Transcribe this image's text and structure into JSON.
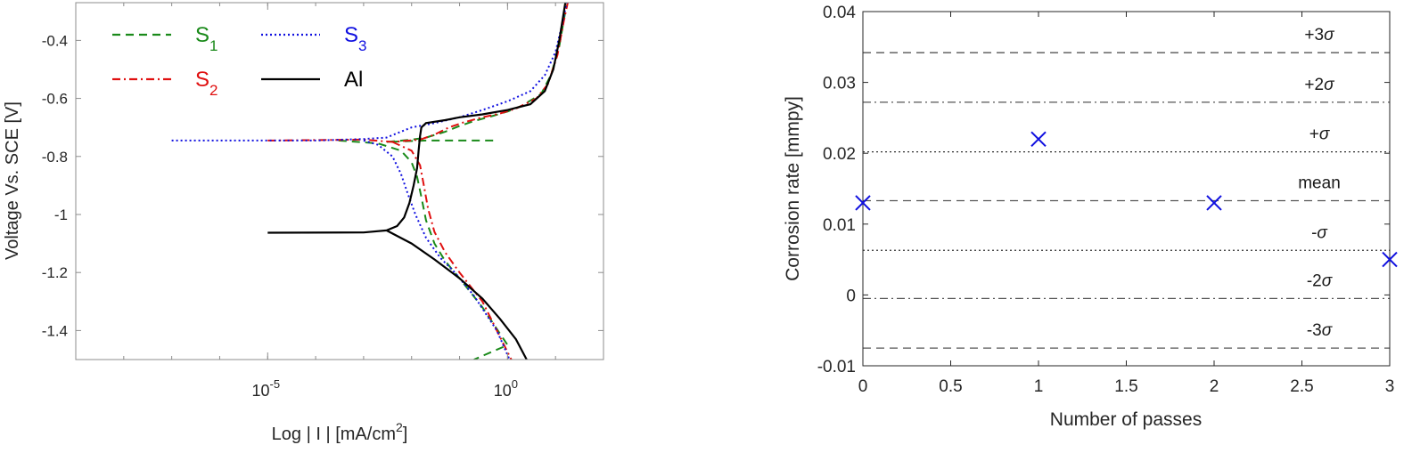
{
  "chart_data": [
    {
      "type": "line",
      "xlabel": "Log | I | [mA/cm",
      "xlabel_sup": "2",
      "xlabel_end": "]",
      "ylabel": "Voltage Vs. SCE [V]",
      "x_scale": "log",
      "xlim": [
        1e-09,
        100
      ],
      "ylim": [
        -1.5,
        -0.27
      ],
      "x_ticks": [
        {
          "value": 1e-05,
          "base": "10",
          "exp": "-5"
        },
        {
          "value": 1,
          "base": "10",
          "exp": "0"
        }
      ],
      "y_ticks": [
        -0.4,
        -0.6,
        -0.8,
        -1,
        -1.2,
        -1.4
      ],
      "y_tick_labels": [
        "-0.4",
        "-0.6",
        "-0.8",
        "-1",
        "-1.2",
        "-1.4"
      ],
      "legend_position": "top-left",
      "series": [
        {
          "name": "S",
          "subscript": "1",
          "color": "#1a8a1a",
          "dash": "dashed",
          "points": [
            [
              0.5,
              -0.745
            ],
            [
              0.02,
              -0.745
            ],
            [
              0.003,
              -0.75
            ],
            [
              0.01,
              -0.742
            ],
            [
              0.02,
              -0.735
            ],
            [
              0.05,
              -0.715
            ],
            [
              0.1,
              -0.695
            ],
            [
              0.2,
              -0.678
            ],
            [
              0.5,
              -0.66
            ],
            [
              1.0,
              -0.645
            ],
            [
              2.0,
              -0.625
            ],
            [
              5.0,
              -0.585
            ],
            [
              8.0,
              -0.52
            ],
            [
              12.0,
              -0.42
            ],
            [
              16.0,
              -0.3
            ],
            [
              18.0,
              -0.27
            ]
          ]
        },
        {
          "name": "S",
          "subscript": "1",
          "color": "#1a8a1a",
          "dash": "dashed",
          "points": [
            [
              0.0003,
              -0.745
            ],
            [
              0.002,
              -0.755
            ],
            [
              0.006,
              -0.78
            ],
            [
              0.01,
              -0.82
            ],
            [
              0.013,
              -0.87
            ],
            [
              0.016,
              -0.94
            ],
            [
              0.02,
              -1.02
            ],
            [
              0.03,
              -1.1
            ],
            [
              0.05,
              -1.16
            ],
            [
              0.1,
              -1.22
            ],
            [
              0.3,
              -1.32
            ],
            [
              1.0,
              -1.45
            ],
            [
              0.2,
              -1.5
            ]
          ]
        },
        {
          "name": "S",
          "subscript": "2",
          "color": "#e01010",
          "dash": "dashdot",
          "points": [
            [
              1e-05,
              -0.745
            ],
            [
              0.001,
              -0.742
            ],
            [
              0.004,
              -0.75
            ],
            [
              0.015,
              -0.742
            ],
            [
              0.03,
              -0.725
            ],
            [
              0.06,
              -0.7
            ],
            [
              0.12,
              -0.683
            ],
            [
              0.3,
              -0.665
            ],
            [
              0.7,
              -0.652
            ],
            [
              1.5,
              -0.635
            ],
            [
              4.0,
              -0.6
            ],
            [
              7.0,
              -0.55
            ],
            [
              11.0,
              -0.45
            ],
            [
              15.0,
              -0.33
            ],
            [
              18.0,
              -0.27
            ]
          ]
        },
        {
          "name": "S",
          "subscript": "2",
          "color": "#e01010",
          "dash": "dashdot",
          "points": [
            [
              0.004,
              -0.75
            ],
            [
              0.01,
              -0.78
            ],
            [
              0.015,
              -0.83
            ],
            [
              0.018,
              -0.9
            ],
            [
              0.022,
              -0.98
            ],
            [
              0.03,
              -1.06
            ],
            [
              0.05,
              -1.13
            ],
            [
              0.1,
              -1.2
            ],
            [
              0.3,
              -1.3
            ],
            [
              1.2,
              -1.5
            ]
          ]
        },
        {
          "name": "S",
          "subscript": "3",
          "color": "#1010e0",
          "dash": "dotted",
          "points": [
            [
              1e-07,
              -0.745
            ],
            [
              0.0001,
              -0.745
            ],
            [
              0.001,
              -0.74
            ],
            [
              0.003,
              -0.735
            ],
            [
              0.005,
              -0.72
            ],
            [
              0.01,
              -0.7
            ],
            [
              0.03,
              -0.685
            ],
            [
              0.1,
              -0.665
            ],
            [
              0.3,
              -0.64
            ],
            [
              1.0,
              -0.61
            ],
            [
              3.0,
              -0.575
            ],
            [
              6.0,
              -0.52
            ],
            [
              10.0,
              -0.44
            ],
            [
              14.0,
              -0.34
            ],
            [
              17.0,
              -0.27
            ]
          ]
        },
        {
          "name": "S",
          "subscript": "3",
          "color": "#1010e0",
          "dash": "dotted",
          "points": [
            [
              0.001,
              -0.745
            ],
            [
              0.002,
              -0.76
            ],
            [
              0.004,
              -0.8
            ],
            [
              0.006,
              -0.86
            ],
            [
              0.008,
              -0.92
            ],
            [
              0.012,
              -1.0
            ],
            [
              0.02,
              -1.08
            ],
            [
              0.04,
              -1.15
            ],
            [
              0.08,
              -1.2
            ],
            [
              0.2,
              -1.28
            ],
            [
              0.6,
              -1.4
            ],
            [
              1.1,
              -1.5
            ]
          ]
        },
        {
          "name": "Al",
          "color": "#000000",
          "dash": "solid",
          "points": [
            [
              1e-05,
              -1.063
            ],
            [
              0.001,
              -1.062
            ],
            [
              0.003,
              -1.055
            ],
            [
              0.005,
              -1.04
            ],
            [
              0.007,
              -1.01
            ],
            [
              0.009,
              -0.96
            ],
            [
              0.011,
              -0.9
            ],
            [
              0.013,
              -0.84
            ],
            [
              0.014,
              -0.78
            ],
            [
              0.015,
              -0.73
            ],
            [
              0.016,
              -0.7
            ],
            [
              0.02,
              -0.685
            ],
            [
              0.05,
              -0.675
            ],
            [
              0.1,
              -0.665
            ],
            [
              0.3,
              -0.655
            ],
            [
              1.0,
              -0.64
            ],
            [
              3.0,
              -0.62
            ],
            [
              6.0,
              -0.575
            ],
            [
              9.0,
              -0.5
            ],
            [
              12.0,
              -0.4
            ],
            [
              16.0,
              -0.27
            ]
          ]
        },
        {
          "name": "Al",
          "color": "#000000",
          "dash": "solid",
          "points": [
            [
              0.003,
              -1.055
            ],
            [
              0.01,
              -1.1
            ],
            [
              0.03,
              -1.155
            ],
            [
              0.1,
              -1.22
            ],
            [
              0.3,
              -1.29
            ],
            [
              0.7,
              -1.36
            ],
            [
              1.5,
              -1.43
            ],
            [
              2.5,
              -1.5
            ]
          ]
        }
      ]
    },
    {
      "type": "scatter",
      "xlabel": "Number of passes",
      "ylabel": "Corrosion rate [mmpy]",
      "xlim": [
        0,
        3
      ],
      "ylim": [
        -0.01,
        0.04
      ],
      "x_ticks": [
        0,
        0.5,
        1,
        1.5,
        2,
        2.5,
        3
      ],
      "x_tick_labels": [
        "0",
        "0.5",
        "1",
        "1.5",
        "2",
        "2.5",
        "3"
      ],
      "y_ticks": [
        -0.01,
        0,
        0.01,
        0.02,
        0.03,
        0.04
      ],
      "y_tick_labels": [
        "-0.01",
        "0",
        "0.01",
        "0.02",
        "0.03",
        "0.04"
      ],
      "marker": "x",
      "marker_color": "#1010e0",
      "points": [
        {
          "x": 0,
          "y": 0.013
        },
        {
          "x": 1,
          "y": 0.022
        },
        {
          "x": 2,
          "y": 0.013
        },
        {
          "x": 3,
          "y": 0.005
        }
      ],
      "reference_lines": [
        {
          "y": 0.0342,
          "label": "+3",
          "symbol": "σ",
          "style": "dashed"
        },
        {
          "y": 0.0272,
          "label": "+2",
          "symbol": "σ",
          "style": "dashdot"
        },
        {
          "y": 0.0202,
          "label": "+",
          "symbol": "σ",
          "style": "dotted"
        },
        {
          "y": 0.0133,
          "label": "mean",
          "symbol": "",
          "style": "dashed"
        },
        {
          "y": 0.0063,
          "label": "-",
          "symbol": "σ",
          "style": "dotted"
        },
        {
          "y": -0.0005,
          "label": "-2",
          "symbol": "σ",
          "style": "dashdot"
        },
        {
          "y": -0.0075,
          "label": "-3",
          "symbol": "σ",
          "style": "dashed"
        }
      ]
    }
  ]
}
